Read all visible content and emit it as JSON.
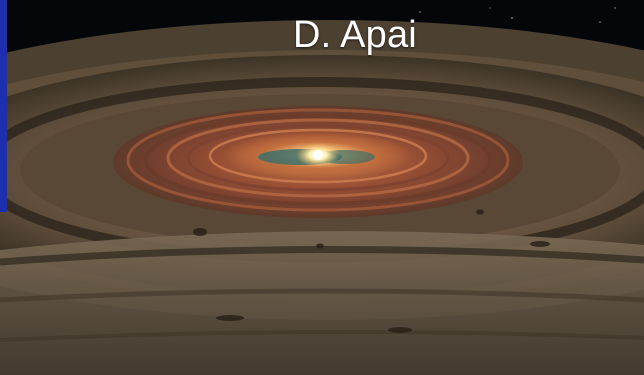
{
  "caption": {
    "credit": "D. Apai"
  },
  "scene": {
    "subject": "protoplanetary-disk",
    "colors": {
      "space": "#05060a",
      "disk_outer": "#6a5a44",
      "disk_mid": "#8a4a2e",
      "disk_inner": "#c66a3e",
      "star_core": "#fff6c8",
      "inner_gap": "#3e6e68",
      "accent_bar": "#1c2fb0"
    }
  }
}
